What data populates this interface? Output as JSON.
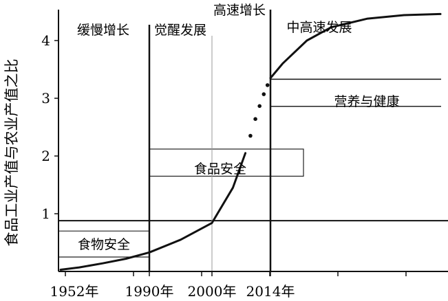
{
  "chart_data": {
    "type": "line",
    "title": "",
    "ylabel": "食品工业产值与农业产值之比",
    "xlabel": "",
    "x_ticks": [
      "1952年",
      "1990年",
      "2000年",
      "2014年"
    ],
    "y_ticks": [
      "1",
      "2",
      "3",
      "4"
    ],
    "ylim": [
      0,
      4.5
    ],
    "phases": [
      {
        "name": "缓慢增长",
        "start": "1952年",
        "end": "1990年"
      },
      {
        "name": "觉醒发展",
        "start": "1990年",
        "end": "2000年"
      },
      {
        "name": "高速增长",
        "start": "2000年",
        "end": "2014年"
      },
      {
        "name": "中高速发展",
        "start": "2014年",
        "end": ""
      }
    ],
    "bands": [
      {
        "label": "食物安全",
        "y_low": 0.25,
        "y_high": 0.7
      },
      {
        "label": "食品安全",
        "y_low": 1.65,
        "y_high": 2.12
      },
      {
        "label": "营养与健康",
        "y_low": 2.86,
        "y_high": 3.33
      }
    ],
    "reference_lines": [
      {
        "y": 0.88
      }
    ],
    "curve": {
      "x": [
        1952,
        1960,
        1970,
        1980,
        1990,
        1995,
        2000,
        2005,
        2008,
        2010,
        2012,
        2014,
        2016,
        2020,
        2024,
        2030,
        2036,
        2042
      ],
      "y": [
        0.03,
        0.07,
        0.14,
        0.22,
        0.33,
        0.55,
        0.84,
        1.45,
        2.05,
        2.55,
        3.0,
        3.35,
        3.6,
        4.0,
        4.23,
        4.38,
        4.44,
        4.46
      ]
    },
    "dotted_segment": {
      "from_x": 2008,
      "to_x": 2014
    }
  }
}
